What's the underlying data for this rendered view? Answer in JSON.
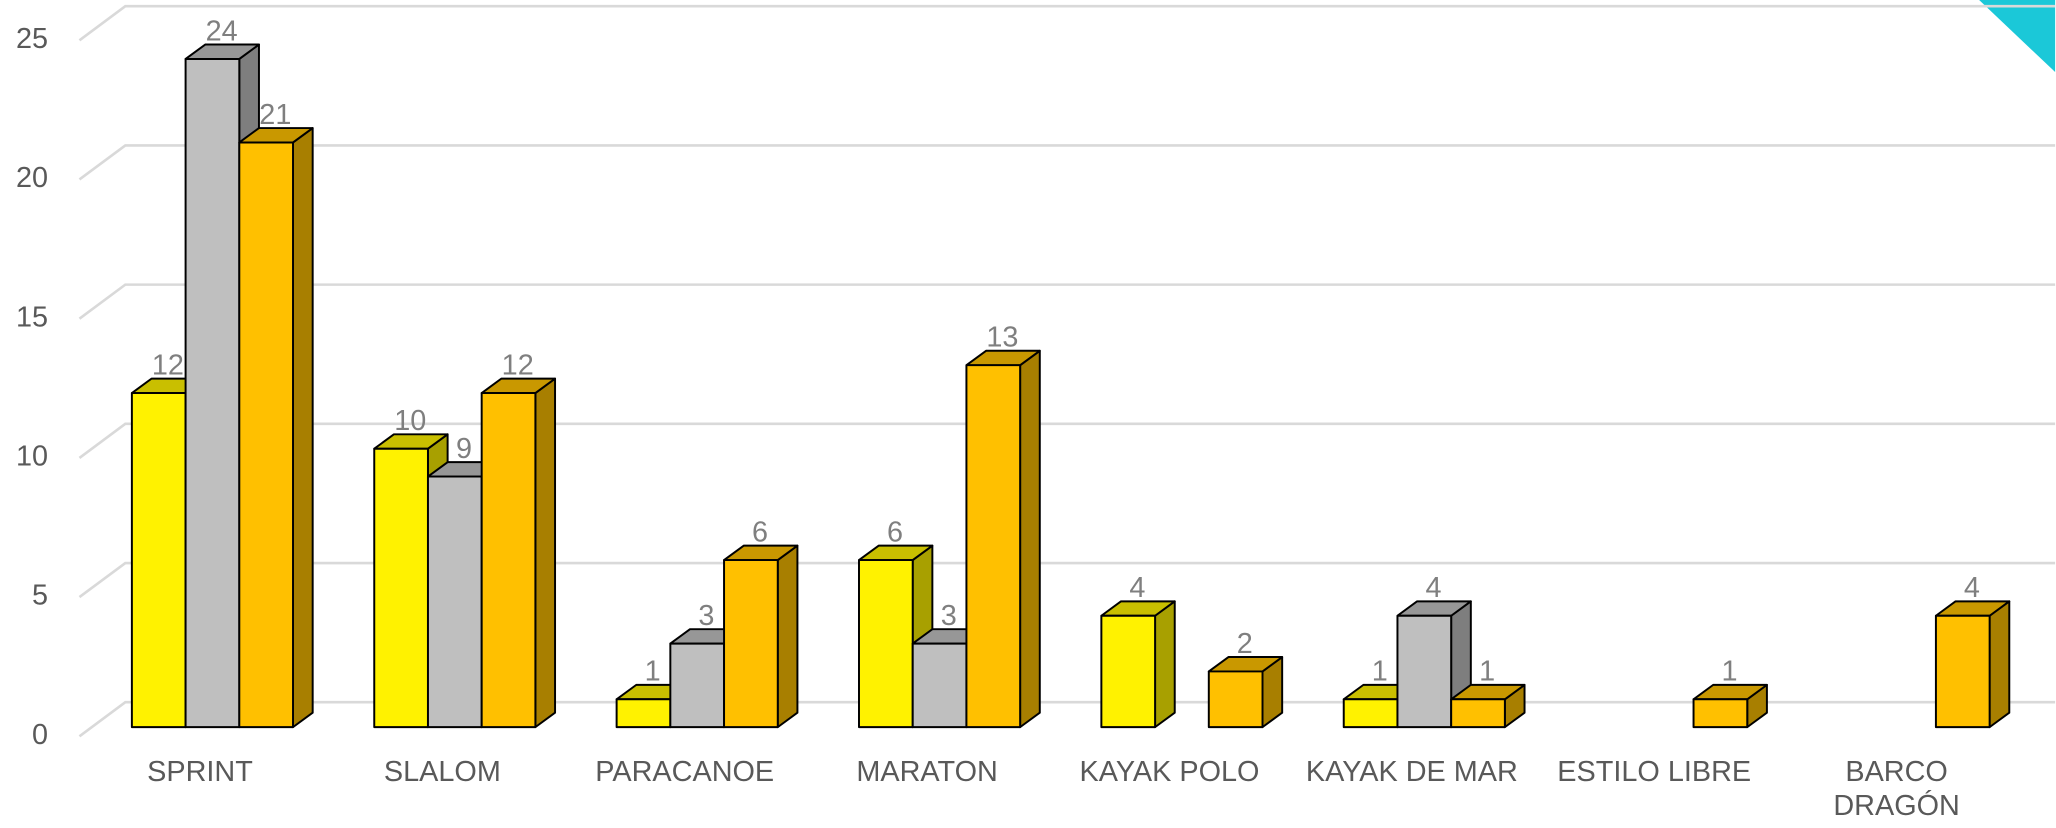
{
  "chart_data": {
    "type": "bar3d",
    "categories": [
      "SPRINT",
      "SLALOM",
      "PARACANOE",
      "MARATON",
      "KAYAK POLO",
      "KAYAK DE MAR",
      "ESTILO LIBRE",
      "BARCO DRAGÓN"
    ],
    "series": [
      {
        "color": "#FFF200",
        "values": [
          12,
          10,
          1,
          6,
          4,
          1,
          null,
          null
        ]
      },
      {
        "color": "#BFBFBF",
        "values": [
          24,
          9,
          3,
          3,
          null,
          4,
          null,
          null
        ]
      },
      {
        "color": "#FFC000",
        "values": [
          21,
          12,
          6,
          13,
          2,
          1,
          1,
          4
        ]
      }
    ],
    "ylim": [
      0,
      25
    ],
    "yticks": [
      0,
      5,
      10,
      15,
      20,
      25
    ],
    "grid": true,
    "data_labels": true
  }
}
